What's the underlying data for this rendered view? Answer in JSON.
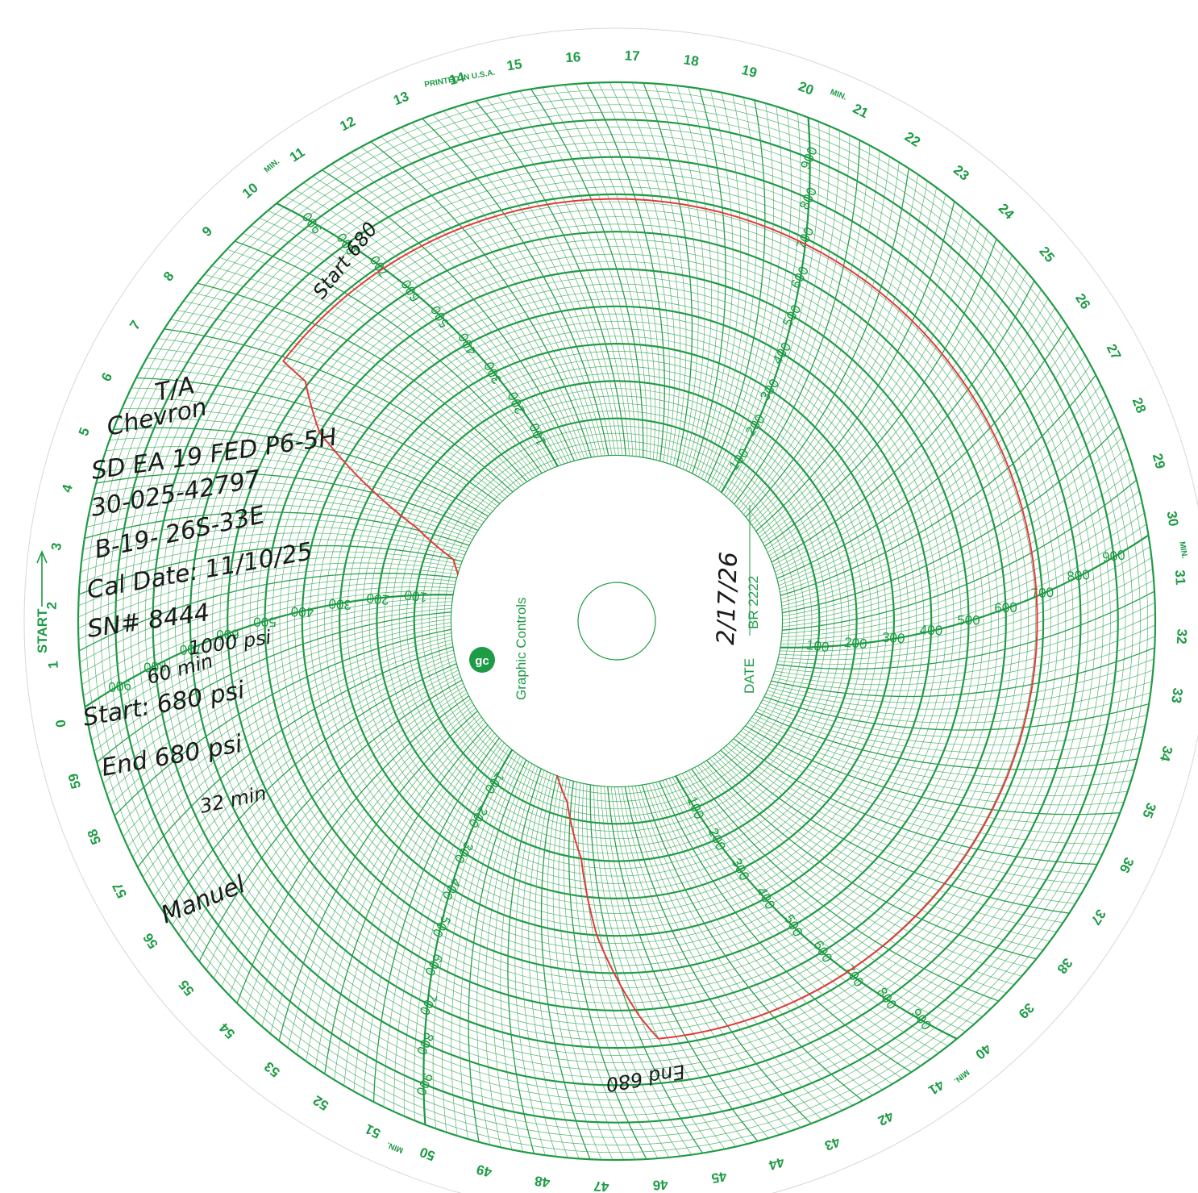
{
  "chart_data": {
    "type": "circular-chart",
    "brand": "Graphic Controls",
    "printed_note": "PRINTED IN U.S.A.",
    "start_label": "START",
    "date_label": "DATE",
    "chart_code": "BR 2222",
    "minute_unit": "MIN.",
    "minute_range": [
      0,
      60
    ],
    "pressure_range": [
      0,
      1000
    ],
    "pressure_ticks": [
      100,
      200,
      300,
      400,
      500,
      600,
      700,
      800,
      900
    ],
    "pressure_scale_minutes": [
      0,
      10,
      20,
      30,
      40,
      50
    ],
    "minute_labels": [
      "0",
      "1",
      "2",
      "3",
      "4",
      "5",
      "6",
      "7",
      "8",
      "9",
      "10",
      "11",
      "12",
      "13",
      "14",
      "15",
      "16",
      "17",
      "18",
      "19",
      "20",
      "21",
      "22",
      "23",
      "24",
      "25",
      "26",
      "27",
      "28",
      "29",
      "30",
      "31",
      "32",
      "33",
      "34",
      "35",
      "36",
      "37",
      "38",
      "39",
      "40",
      "41",
      "42",
      "43",
      "44",
      "45",
      "46",
      "47",
      "48",
      "49",
      "50",
      "51",
      "52",
      "53",
      "54",
      "55",
      "56",
      "57",
      "58",
      "59"
    ],
    "series": [
      {
        "color": "#e23b3b",
        "points": [
          {
            "minute": 1.2,
            "psi": 0
          },
          {
            "minute": 2.0,
            "psi": 25
          },
          {
            "minute": 3.1,
            "psi": 150
          },
          {
            "minute": 4.4,
            "psi": 350
          },
          {
            "minute": 5.4,
            "psi": 500
          },
          {
            "minute": 6.6,
            "psi": 610
          },
          {
            "minute": 6.9,
            "psi": 690
          },
          {
            "minute": 10.0,
            "psi": 690
          },
          {
            "minute": 15.0,
            "psi": 688
          },
          {
            "minute": 20.0,
            "psi": 686
          },
          {
            "minute": 25.0,
            "psi": 685
          },
          {
            "minute": 30.0,
            "psi": 684
          },
          {
            "minute": 35.0,
            "psi": 683
          },
          {
            "minute": 40.0,
            "psi": 682
          },
          {
            "minute": 44.6,
            "psi": 681
          },
          {
            "minute": 44.8,
            "psi": 620
          },
          {
            "minute": 45.3,
            "psi": 400
          },
          {
            "minute": 45.5,
            "psi": 200
          },
          {
            "minute": 46.2,
            "psi": 60
          },
          {
            "minute": 47.0,
            "psi": 0
          }
        ]
      }
    ]
  },
  "annotations": {
    "company_line_1": "T/A",
    "company_line_2": "Chevron",
    "well_name": "SD EA 19 FED P6-5H",
    "api_number": "30-025-42797",
    "location": "B-19- 26S-33E",
    "cal_date": "Cal Date: 11/10/25",
    "serial_number": "SN# 8444",
    "gauge_range": "1000 psi",
    "duration": "60 min",
    "start_pressure": "Start: 680 psi",
    "end_pressure": "End 680 psi",
    "elapsed": "32 min",
    "start_trace_note": "Start 680",
    "end_trace_note": "End 680",
    "date_value": "2/17/26",
    "signature": "Manuel"
  }
}
